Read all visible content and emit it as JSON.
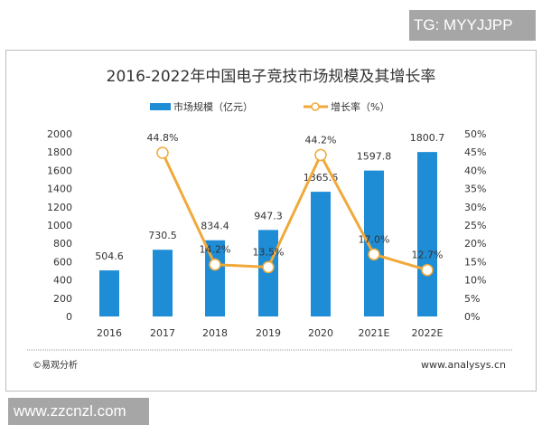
{
  "watermark_top": "TG: MYYJJPP",
  "watermark_bottom": "www.zzcnzl.com",
  "footer": {
    "source": "©易观分析",
    "url": "www.analysys.cn"
  },
  "colors": {
    "bar": "#1f8dd6",
    "line": "#f0a93a",
    "marker_fill": "#ffffff"
  },
  "chart_data": {
    "type": "bar+line",
    "title": "2016-2022年中国电子竞技市场规模及其增长率",
    "categories": [
      "2016",
      "2017",
      "2018",
      "2019",
      "2020",
      "2021E",
      "2022E"
    ],
    "series": [
      {
        "name": "市场规模（亿元）",
        "type": "bar",
        "axis": "left",
        "values": [
          504.6,
          730.5,
          834.4,
          947.3,
          1365.6,
          1597.8,
          1800.7
        ],
        "labels": [
          "504.6",
          "730.5",
          "834.4",
          "947.3",
          "1365.6",
          "1597.8",
          "1800.7"
        ]
      },
      {
        "name": "增长率（%）",
        "type": "line",
        "axis": "right",
        "values": [
          null,
          44.8,
          14.2,
          13.5,
          44.2,
          17.0,
          12.7
        ],
        "labels": [
          "",
          "44.8%",
          "14.2%",
          "13.5%",
          "44.2%",
          "17.0%",
          "12.7%"
        ]
      }
    ],
    "y_left": {
      "range": [
        0,
        2000
      ],
      "ticks": [
        "0",
        "200",
        "400",
        "600",
        "800",
        "1000",
        "1200",
        "1400",
        "1600",
        "1800",
        "2000"
      ]
    },
    "y_right": {
      "range": [
        0,
        50
      ],
      "ticks": [
        "0%",
        "5%",
        "10%",
        "15%",
        "20%",
        "25%",
        "30%",
        "35%",
        "40%",
        "45%",
        "50%"
      ]
    },
    "grid": false,
    "legend": "top-center"
  }
}
